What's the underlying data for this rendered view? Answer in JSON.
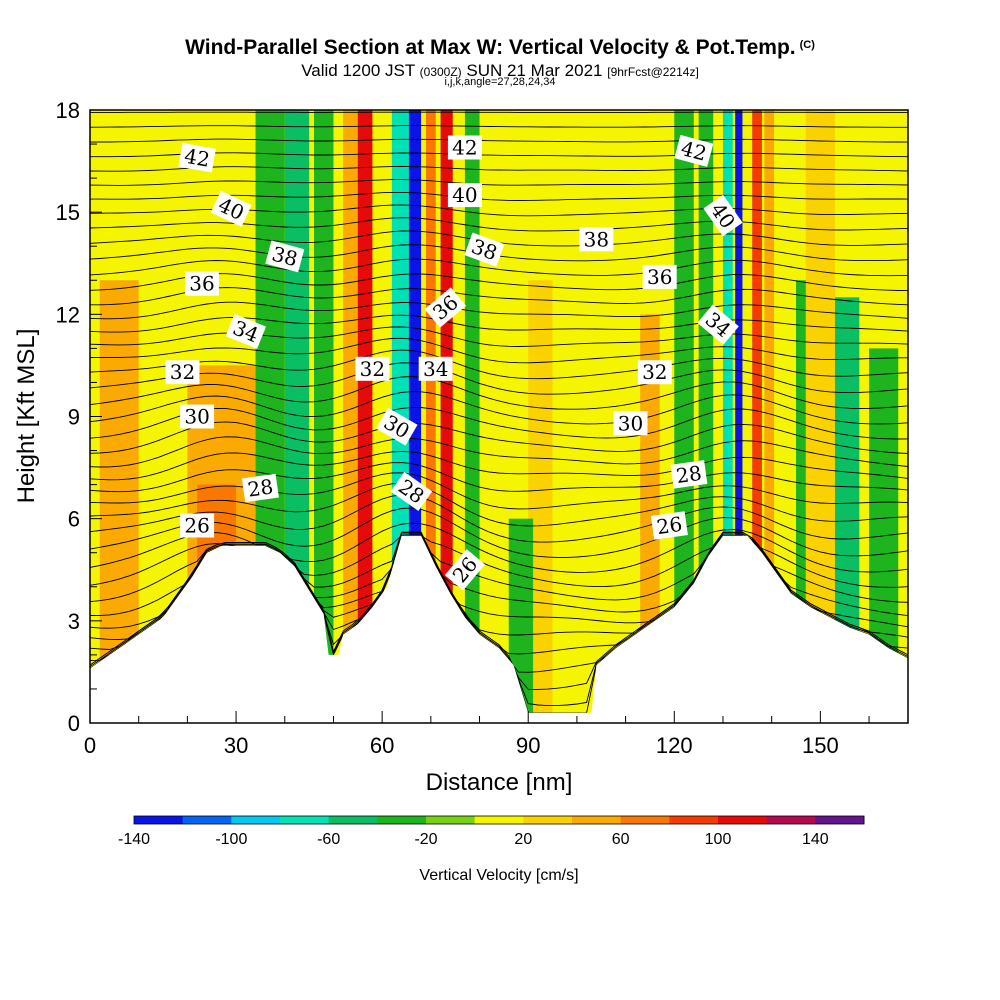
{
  "header": {
    "title": "Wind-Parallel Section at Max W: Vertical Velocity & Pot.Temp.",
    "copyright": "(C)",
    "valid_prefix": "Valid 1200 JST",
    "valid_utc": "(0300Z)",
    "valid_date": "SUN 21 Mar 2021",
    "forecast": "[9hrFcst@2214z]",
    "indices": "i,j,k,angle=27,28,24,34"
  },
  "chart_data": {
    "type": "heatmap",
    "title": "Wind-Parallel Section at Max W: Vertical Velocity & Pot.Temp.",
    "xlabel": "Distance [nm]",
    "ylabel": "Height [Kft MSL]",
    "xlim": [
      0,
      168
    ],
    "ylim": [
      0,
      18
    ],
    "x_ticks": [
      "0",
      "30",
      "60",
      "90",
      "120",
      "150"
    ],
    "x_tick_values": [
      0,
      30,
      60,
      90,
      120,
      150
    ],
    "y_ticks": [
      "0",
      "3",
      "6",
      "9",
      "12",
      "15",
      "18"
    ],
    "y_tick_values": [
      0,
      3,
      6,
      9,
      12,
      15,
      18
    ],
    "colorbar": {
      "label": "Vertical Velocity [cm/s]",
      "tick_labels": [
        "-140",
        "-100",
        "-60",
        "-20",
        "20",
        "60",
        "100",
        "140"
      ],
      "tick_values": [
        -140,
        -100,
        -60,
        -20,
        20,
        60,
        100,
        140
      ],
      "levels": [
        -140,
        -120,
        -100,
        -80,
        -60,
        -40,
        -20,
        0,
        20,
        40,
        60,
        80,
        100,
        120,
        140,
        160
      ],
      "colors": [
        "#0a14e6",
        "#0064f5",
        "#00c8f0",
        "#00e1b4",
        "#0abe64",
        "#1eb41e",
        "#78d214",
        "#f5f500",
        "#fad200",
        "#faaa00",
        "#fa7800",
        "#f53c00",
        "#e60a0a",
        "#b40a50",
        "#64148c"
      ]
    },
    "terrain_kft": [
      [
        0,
        1.6
      ],
      [
        3,
        1.9
      ],
      [
        6,
        2.2
      ],
      [
        9,
        2.5
      ],
      [
        12,
        2.8
      ],
      [
        15,
        3.1
      ],
      [
        18,
        3.7
      ],
      [
        21,
        4.3
      ],
      [
        24,
        5.0
      ],
      [
        27,
        5.2
      ],
      [
        36,
        5.2
      ],
      [
        39,
        5.0
      ],
      [
        42,
        4.6
      ],
      [
        45,
        3.9
      ],
      [
        48,
        3.2
      ],
      [
        49,
        2.0
      ],
      [
        51,
        2.0
      ],
      [
        52,
        2.6
      ],
      [
        55,
        2.9
      ],
      [
        58,
        3.4
      ],
      [
        61,
        4.0
      ],
      [
        64,
        5.5
      ],
      [
        68,
        5.5
      ],
      [
        71,
        4.6
      ],
      [
        74,
        3.8
      ],
      [
        77,
        3.1
      ],
      [
        80,
        2.6
      ],
      [
        84,
        2.2
      ],
      [
        87,
        1.7
      ],
      [
        90,
        0.3
      ],
      [
        103,
        0.3
      ],
      [
        104,
        1.7
      ],
      [
        108,
        2.2
      ],
      [
        112,
        2.6
      ],
      [
        116,
        3.0
      ],
      [
        120,
        3.4
      ],
      [
        124,
        4.1
      ],
      [
        127,
        4.9
      ],
      [
        130,
        5.5
      ],
      [
        135,
        5.5
      ],
      [
        138,
        5.0
      ],
      [
        141,
        4.4
      ],
      [
        144,
        3.8
      ],
      [
        148,
        3.4
      ],
      [
        152,
        3.1
      ],
      [
        156,
        2.8
      ],
      [
        160,
        2.6
      ],
      [
        164,
        2.2
      ],
      [
        168,
        1.9
      ]
    ],
    "w_bands": [
      {
        "x": 2,
        "w": 8,
        "v": 40,
        "top": 13
      },
      {
        "x": 20,
        "w": 14,
        "v": 50,
        "top": 10.5
      },
      {
        "x": 22,
        "w": 8,
        "v": 60,
        "top": 7
      },
      {
        "x": 34,
        "w": 6,
        "v": -40,
        "top": 18
      },
      {
        "x": 40,
        "w": 5,
        "v": -60,
        "top": 18
      },
      {
        "x": 46,
        "w": 4,
        "v": -30,
        "top": 18
      },
      {
        "x": 52,
        "w": 4,
        "v": 50,
        "top": 18
      },
      {
        "x": 55,
        "w": 3,
        "v": 100,
        "top": 18
      },
      {
        "x": 62,
        "w": 4,
        "v": -80,
        "top": 18
      },
      {
        "x": 65.5,
        "w": 2.5,
        "v": -130,
        "top": 18
      },
      {
        "x": 69,
        "w": 2,
        "v": 60,
        "top": 18
      },
      {
        "x": 72,
        "w": 2.5,
        "v": 110,
        "top": 18
      },
      {
        "x": 77,
        "w": 3,
        "v": -40,
        "top": 18
      },
      {
        "x": 90,
        "w": 5,
        "v": 30,
        "top": 13
      },
      {
        "x": 86,
        "w": 5,
        "v": -25,
        "top": 6
      },
      {
        "x": 113,
        "w": 4,
        "v": 40,
        "top": 12
      },
      {
        "x": 120,
        "w": 4,
        "v": -30,
        "top": 18
      },
      {
        "x": 125,
        "w": 3,
        "v": -40,
        "top": 18
      },
      {
        "x": 130,
        "w": 2,
        "v": -70,
        "top": 18
      },
      {
        "x": 132.5,
        "w": 1.5,
        "v": -130,
        "top": 18
      },
      {
        "x": 136,
        "w": 2,
        "v": 90,
        "top": 18
      },
      {
        "x": 138.5,
        "w": 2,
        "v": 40,
        "top": 18
      },
      {
        "x": 145,
        "w": 5,
        "v": -30,
        "top": 13
      },
      {
        "x": 152,
        "w": 6,
        "v": -55,
        "top": 12.5
      },
      {
        "x": 160,
        "w": 6,
        "v": -40,
        "top": 11
      },
      {
        "x": 147,
        "w": 6,
        "v": 30,
        "top": 18
      }
    ],
    "isentropes": {
      "theta_min": 22,
      "theta_max": 43,
      "labels": [
        {
          "text": "42",
          "x": 22,
          "y": 16.6,
          "rot": 10
        },
        {
          "text": "40",
          "x": 29,
          "y": 15.1,
          "rot": 25
        },
        {
          "text": "38",
          "x": 40,
          "y": 13.7,
          "rot": 15
        },
        {
          "text": "36",
          "x": 23,
          "y": 12.9,
          "rot": 0
        },
        {
          "text": "34",
          "x": 32,
          "y": 11.5,
          "rot": 22
        },
        {
          "text": "32",
          "x": 19,
          "y": 10.3,
          "rot": 0
        },
        {
          "text": "30",
          "x": 22,
          "y": 9.0,
          "rot": 0
        },
        {
          "text": "28",
          "x": 35,
          "y": 6.9,
          "rot": -8
        },
        {
          "text": "26",
          "x": 22,
          "y": 5.8,
          "rot": 0
        },
        {
          "text": "42",
          "x": 77,
          "y": 16.9,
          "rot": 0
        },
        {
          "text": "40",
          "x": 77,
          "y": 15.5,
          "rot": 0
        },
        {
          "text": "38",
          "x": 81,
          "y": 13.9,
          "rot": 20
        },
        {
          "text": "36",
          "x": 73,
          "y": 12.2,
          "rot": -40
        },
        {
          "text": "32",
          "x": 58,
          "y": 10.4,
          "rot": 0
        },
        {
          "text": "34",
          "x": 71,
          "y": 10.4,
          "rot": 0
        },
        {
          "text": "30",
          "x": 63,
          "y": 8.7,
          "rot": 30
        },
        {
          "text": "28",
          "x": 66,
          "y": 6.8,
          "rot": 35
        },
        {
          "text": "26",
          "x": 77,
          "y": 4.5,
          "rot": -50
        },
        {
          "text": "38",
          "x": 104,
          "y": 14.2,
          "rot": 0
        },
        {
          "text": "36",
          "x": 117,
          "y": 13.1,
          "rot": 0
        },
        {
          "text": "32",
          "x": 116,
          "y": 10.3,
          "rot": 0
        },
        {
          "text": "30",
          "x": 111,
          "y": 8.8,
          "rot": 0
        },
        {
          "text": "28",
          "x": 123,
          "y": 7.3,
          "rot": -8
        },
        {
          "text": "26",
          "x": 119,
          "y": 5.8,
          "rot": -8
        },
        {
          "text": "42",
          "x": 124,
          "y": 16.8,
          "rot": 15
        },
        {
          "text": "40",
          "x": 130,
          "y": 14.9,
          "rot": 55
        },
        {
          "text": "34",
          "x": 129,
          "y": 11.7,
          "rot": 40
        }
      ]
    }
  }
}
